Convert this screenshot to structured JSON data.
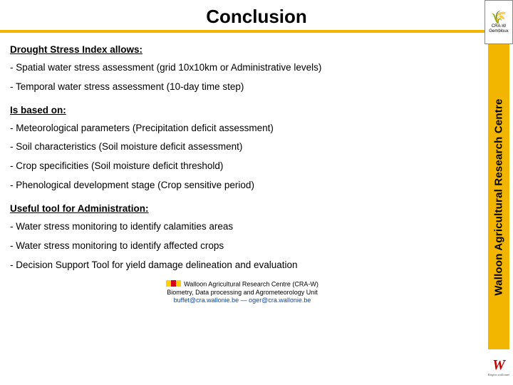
{
  "colors": {
    "accent_yellow": "#f2b600",
    "side_strip_bg": "#f2b600",
    "side_text_color": "#000000",
    "logo_border": "#888888",
    "bottom_logo_color": "#c00000",
    "email_color": "#0b4aa2",
    "flag_yellow": "#ffd100",
    "flag_red": "#d6001c",
    "background": "#ffffff"
  },
  "title": "Conclusion",
  "side": {
    "vertical_label": "Walloon Agricultural Research Centre",
    "top_logo_line1": "CRA-W",
    "top_logo_line2": "Gembloux",
    "bottom_logo_text": "W",
    "bottom_logo_sub": "Région wallonne"
  },
  "sections": [
    {
      "heading": "Drought Stress Index allows:",
      "items": [
        "- Spatial water stress assessment (grid 10x10km or Administrative levels)",
        "- Temporal water stress assessment (10-day time step)"
      ]
    },
    {
      "heading": "Is based on:",
      "items": [
        "- Meteorological parameters (Precipitation deficit assessment)",
        "- Soil characteristics (Soil moisture deficit assessment)",
        "- Crop specificities (Soil moisture deficit threshold)",
        "- Phenological development stage (Crop sensitive period)"
      ]
    },
    {
      "heading": "Useful tool for Administration:",
      "items": [
        "- Water stress monitoring to identify calamities areas",
        "- Water stress monitoring to identify affected crops",
        "- Decision Support Tool for yield  damage delineation  and evaluation"
      ]
    }
  ],
  "footer": {
    "org": "Walloon Agricultural Research Centre (CRA-W)",
    "unit": "Biometry, Data processing and Agrometeorology Unit",
    "email1": "buffet@cra.wallonie.be",
    "email_sep": " — ",
    "email2": "oger@cra.wallonie.be"
  }
}
